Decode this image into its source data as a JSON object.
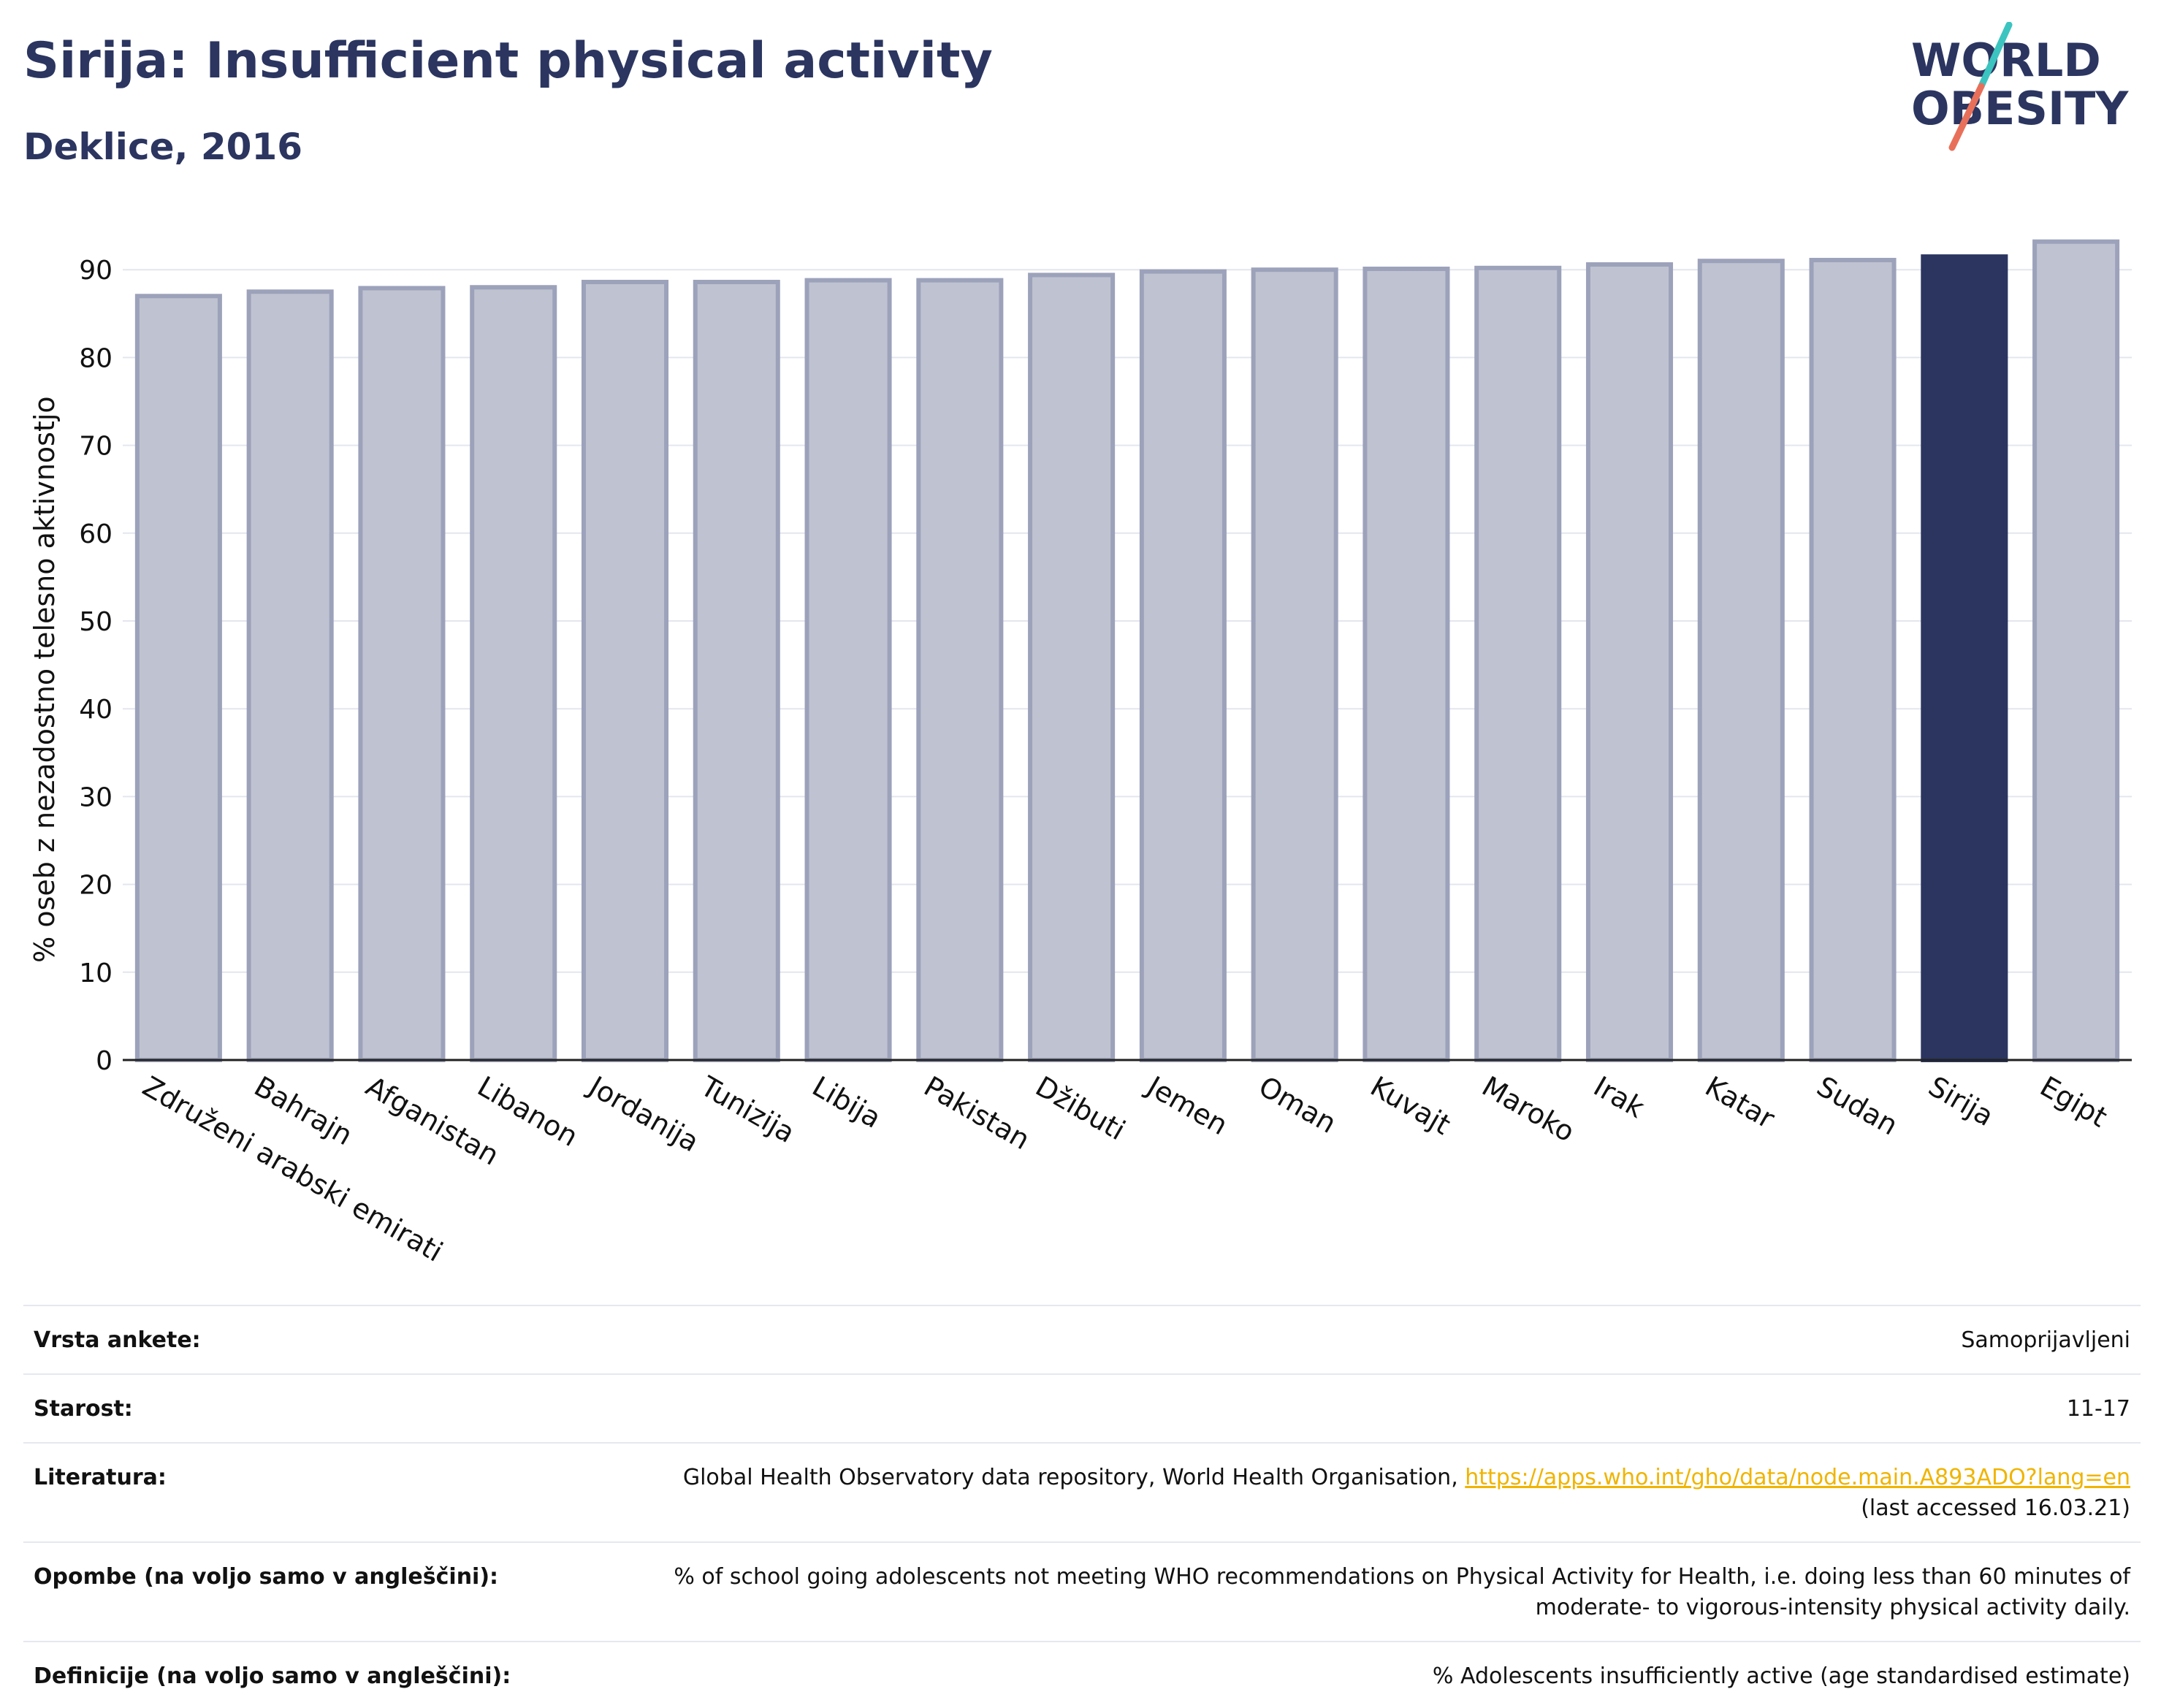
{
  "header": {
    "title": "Sirija: Insufficient physical activity",
    "subtitle": "Deklice, 2016"
  },
  "logo": {
    "line1": "WORLD",
    "line2": "OBESITY",
    "text_color": "#2b3560",
    "slash_top_color": "#3cc4c0",
    "slash_bottom_color": "#e8705a"
  },
  "chart_data": {
    "type": "bar",
    "title": "Sirija: Insufficient physical activity",
    "subtitle": "Deklice, 2016",
    "xlabel": "",
    "ylabel": "% oseb z nezadostno telesno aktivnostjo",
    "ylim": [
      0,
      95
    ],
    "yticks": [
      0,
      10,
      20,
      30,
      40,
      50,
      60,
      70,
      80,
      90
    ],
    "grid": true,
    "highlight": "Sirija",
    "colors": {
      "bar": "#bfc2d0",
      "bar_border": "#9da2bb",
      "highlight": "#2b3560"
    },
    "categories": [
      "Združeni arabski emirati",
      "Bahrajn",
      "Afganistan",
      "Libanon",
      "Jordanija",
      "Tunizija",
      "Libija",
      "Pakistan",
      "Džibuti",
      "Jemen",
      "Oman",
      "Kuvajt",
      "Maroko",
      "Irak",
      "Katar",
      "Sudan",
      "Sirija",
      "Egipt"
    ],
    "values": [
      87.0,
      87.5,
      87.9,
      88.0,
      88.6,
      88.6,
      88.8,
      88.8,
      89.4,
      89.8,
      90.0,
      90.1,
      90.2,
      90.6,
      91.0,
      91.1,
      91.5,
      93.2
    ]
  },
  "meta": {
    "rows": [
      {
        "label": "Vrsta ankete:",
        "value": "Samoprijavljeni"
      },
      {
        "label": "Starost:",
        "value": "11-17"
      },
      {
        "label": "Literatura:",
        "value": "Global Health Observatory data repository, World Health Organisation, ",
        "link": "https://apps.who.int/gho/data/node.main.A893ADO?lang=en",
        "value2": "(last accessed 16.03.21)"
      },
      {
        "label": "Opombe (na voljo samo v angleščini):",
        "value": "% of school going adolescents not meeting WHO recommendations on Physical Activity for Health, i.e. doing less than 60 minutes of",
        "value2": "moderate- to vigorous-intensity physical activity daily."
      },
      {
        "label": "Definicije (na voljo samo v angleščini):",
        "value": "% Adolescents insufficiently active (age standardised estimate)"
      }
    ]
  }
}
